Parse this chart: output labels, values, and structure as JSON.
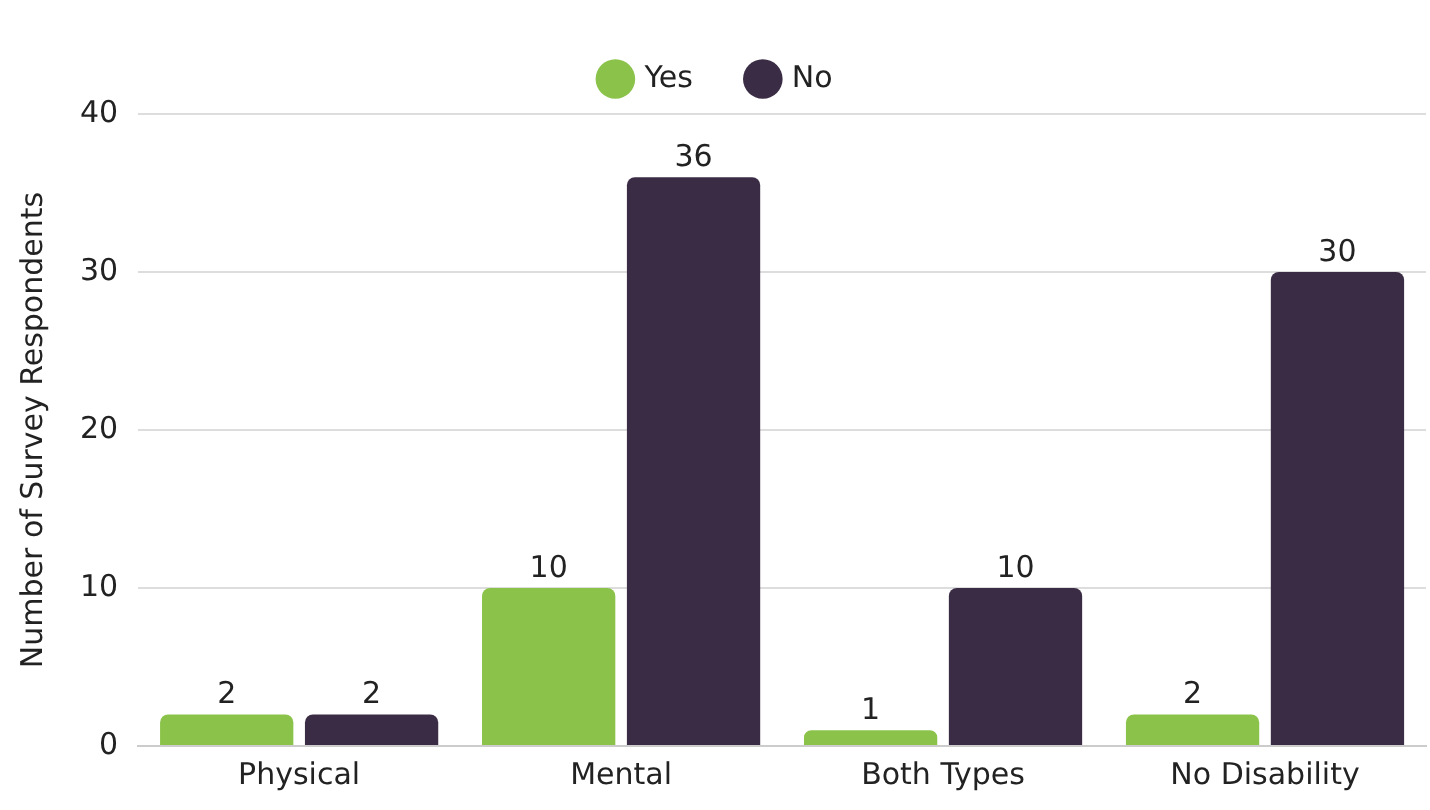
{
  "chart_data": {
    "type": "bar",
    "ylabel": "Number of Survey Respondents",
    "categories": [
      "Physical",
      "Mental",
      "Both Types",
      "No Disability"
    ],
    "series": [
      {
        "name": "Yes",
        "color": "#8bc34a",
        "values": [
          2,
          10,
          1,
          2
        ]
      },
      {
        "name": "No",
        "color": "#3a2c44",
        "values": [
          2,
          36,
          10,
          30
        ]
      }
    ],
    "ylim": [
      0,
      40
    ],
    "yticks": [
      0,
      10,
      20,
      30,
      40
    ],
    "grid": "y",
    "legend": "top",
    "data_labels": true
  }
}
